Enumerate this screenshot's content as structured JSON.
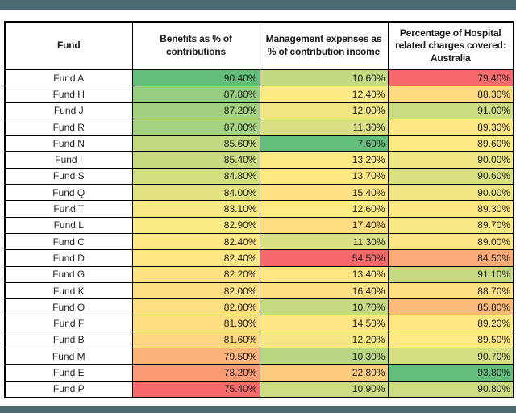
{
  "page": {
    "accent_bar_color": "#4D6A73",
    "background_color": "#FFFFFF"
  },
  "table": {
    "columns": [
      "Fund",
      "Benefits as % of contributions",
      "Management expenses as % of contribution income",
      "Percentage of Hospital related charges covered: Australia"
    ],
    "heatmap_scale": {
      "min_color": "#F8696B",
      "mid_color": "#FFEB84",
      "max_color": "#63BE7B",
      "note": "3-color scale applied per column; benefits and hospital coverage: high=green, management expenses: low=green"
    },
    "rows": [
      {
        "fund": "Fund A",
        "benefits": "90.40%",
        "benefits_color": "#63BE7B",
        "expenses": "10.60%",
        "expenses_color": "#C3DA81",
        "hospital": "79.40%",
        "hospital_color": "#F8696B"
      },
      {
        "fund": "Fund H",
        "benefits": "87.80%",
        "benefits_color": "#97CD7E",
        "expenses": "12.40%",
        "expenses_color": "#FCEA84",
        "hospital": "88.30%",
        "hospital_color": "#FEDB81"
      },
      {
        "fund": "Fund J",
        "benefits": "87.20%",
        "benefits_color": "#A3D17F",
        "expenses": "12.00%",
        "expenses_color": "#EFE683",
        "hospital": "91.00%",
        "hospital_color": "#CADC81"
      },
      {
        "fund": "Fund R",
        "benefits": "87.00%",
        "benefits_color": "#A7D27F",
        "expenses": "11.30%",
        "expenses_color": "#D9E082",
        "hospital": "89.30%",
        "hospital_color": "#FFE883"
      },
      {
        "fund": "Fund N",
        "benefits": "85.60%",
        "benefits_color": "#C4DA81",
        "expenses": "7.60%",
        "expenses_color": "#63BE7B",
        "hospital": "89.60%",
        "hospital_color": "#FDEA84"
      },
      {
        "fund": "Fund I",
        "benefits": "85.40%",
        "benefits_color": "#C8DB81",
        "expenses": "13.20%",
        "expenses_color": "#FFE984",
        "hospital": "90.00%",
        "hospital_color": "#EEE683"
      },
      {
        "fund": "Fund S",
        "benefits": "84.80%",
        "benefits_color": "#D4DF82",
        "expenses": "13.70%",
        "expenses_color": "#FFE783",
        "hospital": "90.60%",
        "hospital_color": "#D8E082"
      },
      {
        "fund": "Fund Q",
        "benefits": "84.00%",
        "benefits_color": "#E4E382",
        "expenses": "15.40%",
        "expenses_color": "#FFE282",
        "hospital": "90.00%",
        "hospital_color": "#EEE683"
      },
      {
        "fund": "Fund T",
        "benefits": "83.10%",
        "benefits_color": "#F6E883",
        "expenses": "12.60%",
        "expenses_color": "#FFEB84",
        "hospital": "89.30%",
        "hospital_color": "#FFE883"
      },
      {
        "fund": "Fund L",
        "benefits": "82.90%",
        "benefits_color": "#FAEA84",
        "expenses": "17.40%",
        "expenses_color": "#FEDC81",
        "hospital": "89.70%",
        "hospital_color": "#F9E984"
      },
      {
        "fund": "Fund C",
        "benefits": "82.40%",
        "benefits_color": "#FFE783",
        "expenses": "11.30%",
        "expenses_color": "#D9E082",
        "hospital": "89.00%",
        "hospital_color": "#FFE483"
      },
      {
        "fund": "Fund D",
        "benefits": "82.40%",
        "benefits_color": "#FFE783",
        "expenses": "54.50%",
        "expenses_color": "#F8696B",
        "hospital": "84.50%",
        "hospital_color": "#FCAA78"
      },
      {
        "fund": "Fund G",
        "benefits": "82.20%",
        "benefits_color": "#FFE382",
        "expenses": "13.40%",
        "expenses_color": "#FFE883",
        "hospital": "91.10%",
        "hospital_color": "#C6DB81"
      },
      {
        "fund": "Fund K",
        "benefits": "82.00%",
        "benefits_color": "#FEDF82",
        "expenses": "16.40%",
        "expenses_color": "#FEDF82",
        "hospital": "88.70%",
        "hospital_color": "#FEE082"
      },
      {
        "fund": "Fund O",
        "benefits": "82.00%",
        "benefits_color": "#FEDF82",
        "expenses": "10.70%",
        "expenses_color": "#C6DA81",
        "hospital": "85.80%",
        "hospital_color": "#FCBB7B"
      },
      {
        "fund": "Fund F",
        "benefits": "81.90%",
        "benefits_color": "#FEDE81",
        "expenses": "14.50%",
        "expenses_color": "#FFE583",
        "hospital": "89.20%",
        "hospital_color": "#FFE783"
      },
      {
        "fund": "Fund B",
        "benefits": "81.60%",
        "benefits_color": "#FED880",
        "expenses": "12.20%",
        "expenses_color": "#F5E883",
        "hospital": "89.50%",
        "hospital_color": "#FFEA84"
      },
      {
        "fund": "Fund M",
        "benefits": "79.50%",
        "benefits_color": "#FCB379",
        "expenses": "10.30%",
        "expenses_color": "#B9D780",
        "hospital": "90.70%",
        "hospital_color": "#D5DF82"
      },
      {
        "fund": "Fund E",
        "benefits": "78.20%",
        "benefits_color": "#FB9B75",
        "expenses": "22.80%",
        "expenses_color": "#FDCB7E",
        "hospital": "93.80%",
        "hospital_color": "#63BE7B"
      },
      {
        "fund": "Fund P",
        "benefits": "75.40%",
        "benefits_color": "#F8696B",
        "expenses": "10.90%",
        "expenses_color": "#CCDC81",
        "hospital": "90.80%",
        "hospital_color": "#CCDC81"
      }
    ]
  },
  "chart_data": {
    "type": "table",
    "title": "",
    "columns": [
      "Fund",
      "Benefits as % of contributions",
      "Management expenses as % of contribution income",
      "Percentage of Hospital related charges covered: Australia"
    ],
    "units": "percent",
    "rows": [
      [
        "Fund A",
        90.4,
        10.6,
        79.4
      ],
      [
        "Fund H",
        87.8,
        12.4,
        88.3
      ],
      [
        "Fund J",
        87.2,
        12.0,
        91.0
      ],
      [
        "Fund R",
        87.0,
        11.3,
        89.3
      ],
      [
        "Fund N",
        85.6,
        7.6,
        89.6
      ],
      [
        "Fund I",
        85.4,
        13.2,
        90.0
      ],
      [
        "Fund S",
        84.8,
        13.7,
        90.6
      ],
      [
        "Fund Q",
        84.0,
        15.4,
        90.0
      ],
      [
        "Fund T",
        83.1,
        12.6,
        89.3
      ],
      [
        "Fund L",
        82.9,
        17.4,
        89.7
      ],
      [
        "Fund C",
        82.4,
        11.3,
        89.0
      ],
      [
        "Fund D",
        82.4,
        54.5,
        84.5
      ],
      [
        "Fund G",
        82.2,
        13.4,
        91.1
      ],
      [
        "Fund K",
        82.0,
        16.4,
        88.7
      ],
      [
        "Fund O",
        82.0,
        10.7,
        85.8
      ],
      [
        "Fund F",
        81.9,
        14.5,
        89.2
      ],
      [
        "Fund B",
        81.6,
        12.2,
        89.5
      ],
      [
        "Fund M",
        79.5,
        10.3,
        90.7
      ],
      [
        "Fund E",
        78.2,
        22.8,
        93.8
      ],
      [
        "Fund P",
        75.4,
        10.9,
        90.8
      ]
    ],
    "layout_hints": {
      "conditional_formatting": "Excel 3-color scale red (#F8696B) / yellow (#FFEB84) / green (#63BE7B) per column",
      "column_direction": {
        "benefits": "higher is greener",
        "management_expenses": "lower is greener",
        "hospital_coverage": "higher is greener"
      }
    }
  }
}
